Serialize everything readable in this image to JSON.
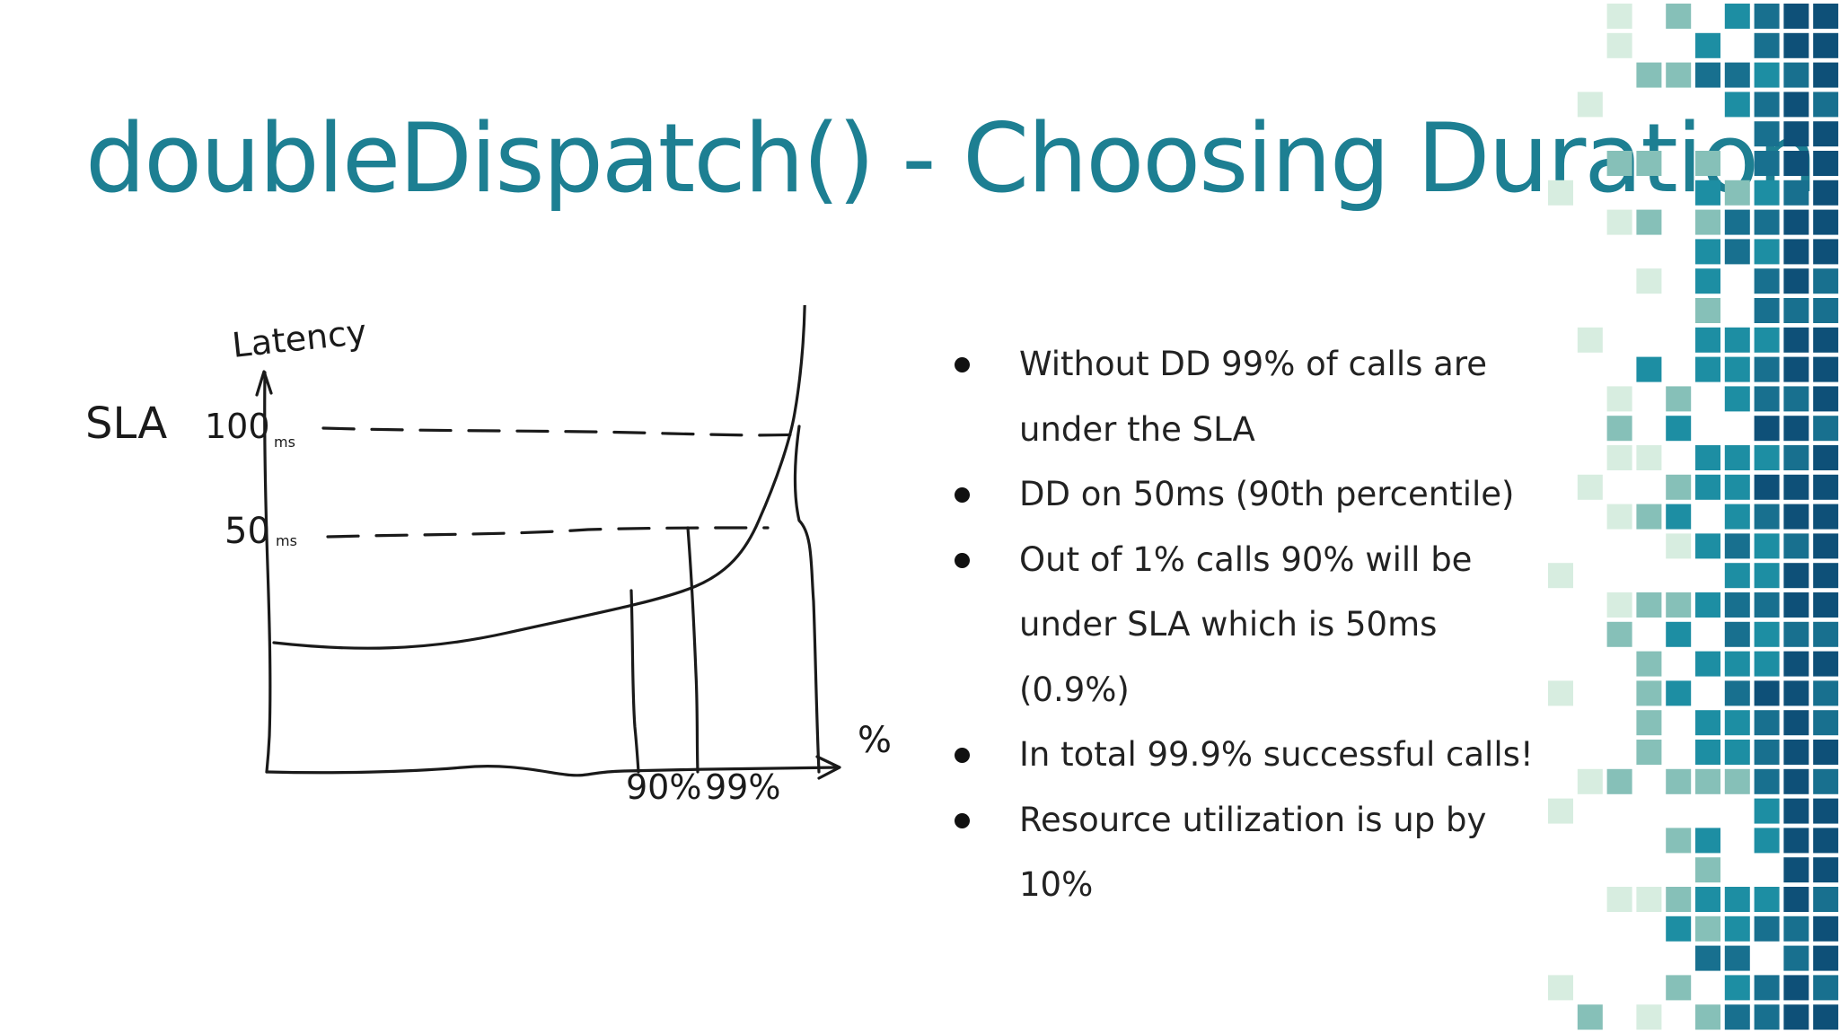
{
  "slide": {
    "title": "doubleDispatch() - Choosing Duration",
    "title_color": "#1d7f92"
  },
  "sketch": {
    "y_axis_label": "Latency",
    "sla_label": "SLA",
    "sla_value": "100",
    "sla_unit": "ms",
    "mid_value": "50",
    "mid_unit": "ms",
    "x_axis_label": "%",
    "x_tick_1": "90%",
    "x_tick_2": "99%"
  },
  "bullets": [
    "Without DD 99% of calls are under the SLA",
    "DD on 50ms (90th percentile)",
    "Out of 1% calls 90% will be under SLA which is 50ms (0.9%)",
    "In total 99.9% successful calls!",
    "Resource utilization is up by 10%"
  ],
  "decoration": {
    "palette": [
      "#d7ede0",
      "#86c0b8",
      "#1d8ea3",
      "#18708f",
      "#0e5078"
    ]
  }
}
